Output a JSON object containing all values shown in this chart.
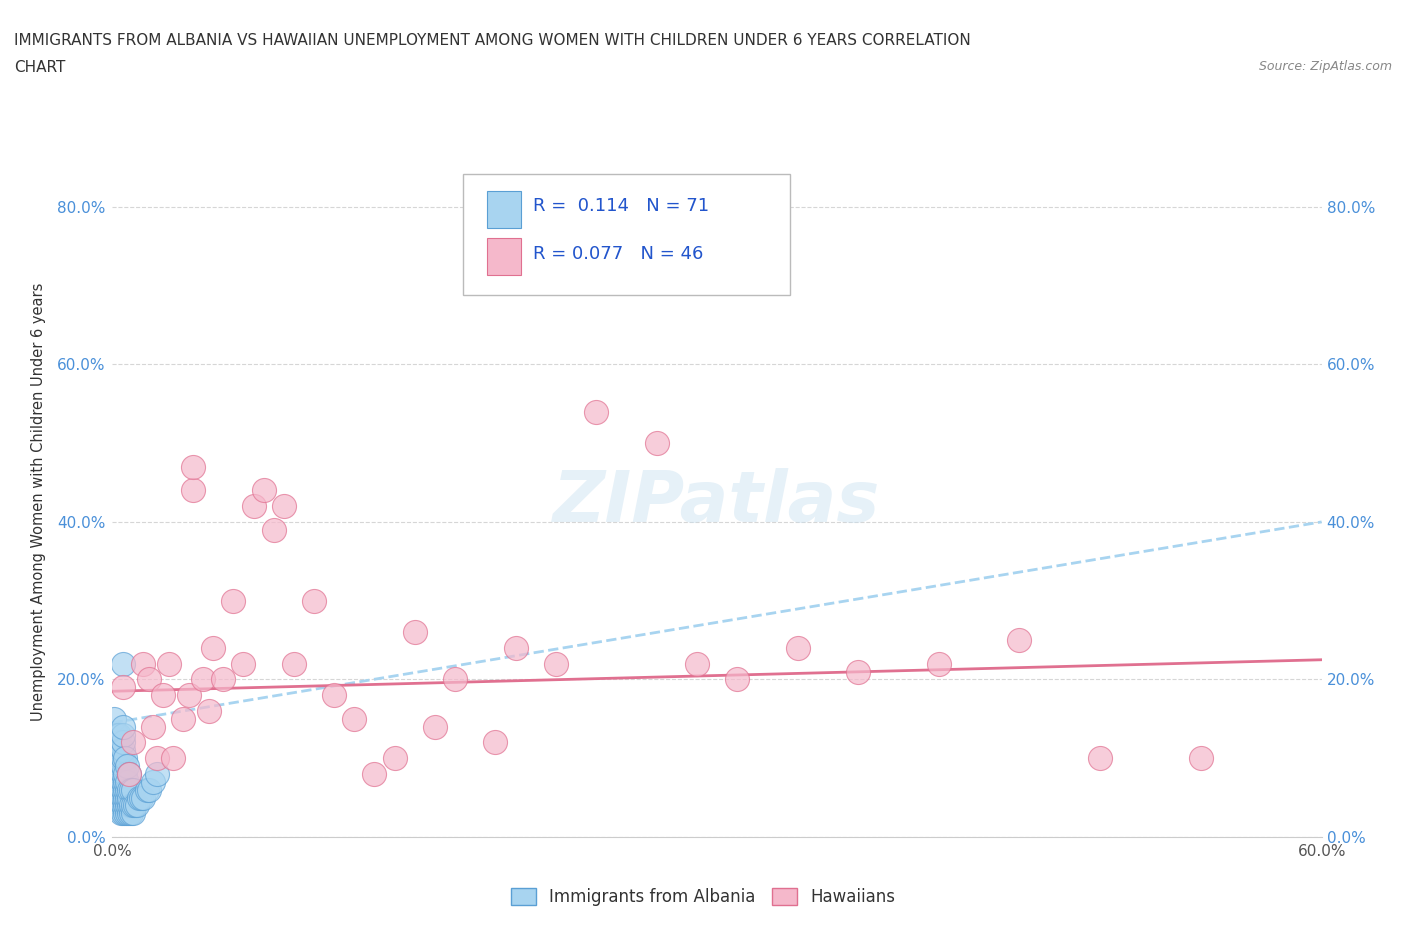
{
  "title_line1": "IMMIGRANTS FROM ALBANIA VS HAWAIIAN UNEMPLOYMENT AMONG WOMEN WITH CHILDREN UNDER 6 YEARS CORRELATION",
  "title_line2": "CHART",
  "source": "Source: ZipAtlas.com",
  "ylabel": "Unemployment Among Women with Children Under 6 years",
  "xlim": [
    0.0,
    0.6
  ],
  "ylim": [
    0.0,
    0.85
  ],
  "xticks": [
    0.0,
    0.1,
    0.2,
    0.3,
    0.4,
    0.5,
    0.6
  ],
  "yticks": [
    0.0,
    0.2,
    0.4,
    0.6,
    0.8
  ],
  "xticklabels": [
    "0.0%",
    "",
    "",
    "",
    "",
    "",
    "60.0%"
  ],
  "yticklabels": [
    "0.0%",
    "20.0%",
    "40.0%",
    "60.0%",
    "80.0%"
  ],
  "R_albania": 0.114,
  "N_albania": 71,
  "R_hawaiian": 0.077,
  "N_hawaiian": 46,
  "color_albania": "#a8d4f0",
  "color_hawaiian": "#f5b8cb",
  "color_albania_edge": "#5a9fd4",
  "color_hawaiian_edge": "#e07090",
  "trend_color_albania": "#a8d4f0",
  "trend_color_hawaiian": "#e07090",
  "background_color": "#ffffff",
  "watermark": "ZIPatlas",
  "albania_x": [
    0.001,
    0.001,
    0.002,
    0.002,
    0.002,
    0.002,
    0.002,
    0.003,
    0.003,
    0.003,
    0.003,
    0.003,
    0.003,
    0.003,
    0.003,
    0.003,
    0.004,
    0.004,
    0.004,
    0.004,
    0.004,
    0.004,
    0.004,
    0.004,
    0.004,
    0.005,
    0.005,
    0.005,
    0.005,
    0.005,
    0.005,
    0.005,
    0.005,
    0.005,
    0.005,
    0.005,
    0.005,
    0.005,
    0.006,
    0.006,
    0.006,
    0.006,
    0.006,
    0.006,
    0.006,
    0.007,
    0.007,
    0.007,
    0.007,
    0.007,
    0.007,
    0.008,
    0.008,
    0.008,
    0.008,
    0.008,
    0.009,
    0.009,
    0.009,
    0.01,
    0.01,
    0.01,
    0.011,
    0.012,
    0.013,
    0.014,
    0.015,
    0.017,
    0.018,
    0.02,
    0.022
  ],
  "albania_y": [
    0.1,
    0.15,
    0.04,
    0.06,
    0.08,
    0.1,
    0.13,
    0.04,
    0.05,
    0.06,
    0.07,
    0.08,
    0.09,
    0.1,
    0.11,
    0.13,
    0.03,
    0.04,
    0.05,
    0.06,
    0.07,
    0.08,
    0.09,
    0.1,
    0.11,
    0.03,
    0.04,
    0.05,
    0.06,
    0.07,
    0.08,
    0.09,
    0.1,
    0.11,
    0.12,
    0.13,
    0.14,
    0.22,
    0.03,
    0.04,
    0.05,
    0.06,
    0.07,
    0.08,
    0.1,
    0.03,
    0.04,
    0.05,
    0.06,
    0.07,
    0.09,
    0.03,
    0.04,
    0.05,
    0.06,
    0.08,
    0.03,
    0.04,
    0.06,
    0.03,
    0.04,
    0.06,
    0.04,
    0.04,
    0.05,
    0.05,
    0.05,
    0.06,
    0.06,
    0.07,
    0.08
  ],
  "hawaiian_x": [
    0.005,
    0.008,
    0.01,
    0.015,
    0.018,
    0.02,
    0.022,
    0.025,
    0.028,
    0.03,
    0.035,
    0.038,
    0.04,
    0.04,
    0.045,
    0.048,
    0.05,
    0.055,
    0.06,
    0.065,
    0.07,
    0.075,
    0.08,
    0.085,
    0.09,
    0.1,
    0.11,
    0.12,
    0.13,
    0.14,
    0.15,
    0.16,
    0.17,
    0.19,
    0.2,
    0.22,
    0.24,
    0.27,
    0.29,
    0.31,
    0.34,
    0.37,
    0.41,
    0.45,
    0.49,
    0.54
  ],
  "hawaiian_y": [
    0.19,
    0.08,
    0.12,
    0.22,
    0.2,
    0.14,
    0.1,
    0.18,
    0.22,
    0.1,
    0.15,
    0.18,
    0.44,
    0.47,
    0.2,
    0.16,
    0.24,
    0.2,
    0.3,
    0.22,
    0.42,
    0.44,
    0.39,
    0.42,
    0.22,
    0.3,
    0.18,
    0.15,
    0.08,
    0.1,
    0.26,
    0.14,
    0.2,
    0.12,
    0.24,
    0.22,
    0.54,
    0.5,
    0.22,
    0.2,
    0.24,
    0.21,
    0.22,
    0.25,
    0.1,
    0.1
  ],
  "albania_trend_x": [
    0.0,
    0.6
  ],
  "albania_trend_y": [
    0.145,
    0.4
  ],
  "hawaiian_trend_x": [
    0.0,
    0.6
  ],
  "hawaiian_trend_y": [
    0.185,
    0.225
  ]
}
